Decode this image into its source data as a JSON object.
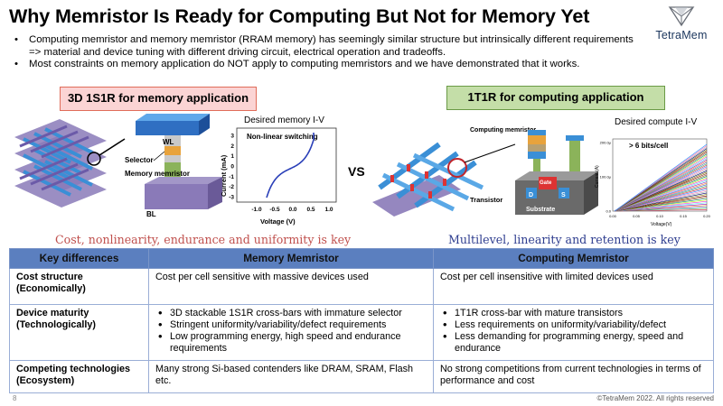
{
  "header": {
    "title": "Why Memristor Is Ready for Computing But Not for Memory Yet",
    "logo_text": "TetraMem"
  },
  "bullets": [
    "Computing memristor and memory memristor (RRAM memory) has seemingly similar structure but intrinsically different requirements => material and device tuning with different driving circuit, electrical operation and tradeoffs.",
    "Most constraints on memory application do NOT apply to computing memristors and we have demonstrated that it works."
  ],
  "left_panel": {
    "tag": "3D 1S1R for memory application",
    "labels": {
      "wl": "WL",
      "selector": "Selector",
      "memory_memristor": "Memory memristor",
      "bl": "BL"
    },
    "plot": {
      "title": "Desired memory I-V",
      "annotation": "Non-linear switching",
      "xlabel": "Voltage (V)",
      "ylabel": "Current (mA)",
      "xticks": [
        "-1.0",
        "-0.5",
        "0.0",
        "0.5",
        "1.0"
      ],
      "yticks": [
        "3",
        "2",
        "1",
        "0",
        "-1",
        "-2",
        "-3"
      ]
    },
    "caption": "Cost, nonlinearity, endurance and uniformity is key"
  },
  "vs_label": "VS",
  "right_panel": {
    "tag": "1T1R for computing application",
    "labels": {
      "computing_memristor": "Computing memristor",
      "gate": "Gate",
      "transistor": "Transistor",
      "d": "D",
      "s": "S",
      "substrate": "Substrate"
    },
    "plot": {
      "title": "Desired compute I-V",
      "annotation": "> 6 bits/cell",
      "xlabel": "Voltage(V)",
      "ylabel": "Current (A)",
      "xticks": [
        "0.00",
        "0.05",
        "0.10",
        "0.15",
        "0.20"
      ],
      "yticks": [
        "200.0μ",
        "100.0μ",
        "0.0"
      ]
    },
    "caption": "Multilevel, linearity and retention is key"
  },
  "table": {
    "headers": [
      "Key differences",
      "Memory Memristor",
      "Computing Memristor"
    ],
    "rows": [
      {
        "key": "Cost structure (Economically)",
        "memory": [
          "Cost per cell sensitive with massive devices used"
        ],
        "computing": [
          "Cost per cell insensitive with limited devices used"
        ]
      },
      {
        "key": "Device maturity (Technologically)",
        "memory_bullets": [
          "3D stackable 1S1R cross-bars with immature selector",
          "Stringent uniformity/variability/defect requirements",
          "Low programming energy, high speed and endurance requirements"
        ],
        "computing_bullets": [
          "1T1R cross-bar with mature transistors",
          "Less requirements on uniformity/variability/defect",
          "Less demanding for programming energy, speed and endurance"
        ]
      },
      {
        "key": "Competing technologies (Ecosystem)",
        "memory": [
          "Many strong Si-based contenders like DRAM, SRAM, Flash etc."
        ],
        "computing": [
          "No strong competitions from current technologies in terms of performance and cost"
        ]
      }
    ]
  },
  "footer": {
    "page_number": "8",
    "copyright": "©TetraMem 2022. All rights reserved"
  },
  "colors": {
    "left_tag_bg": "#fbd4d4",
    "left_tag_border": "#e06d5a",
    "right_tag_bg": "#c4dea8",
    "right_tag_border": "#6a9a46",
    "table_header": "#5b7fbf",
    "left_caption": "#c0504d",
    "right_caption": "#2e3d8f",
    "crossbar_blue": "#3a8fd6",
    "crossbar_purple": "#8a7ab8"
  }
}
